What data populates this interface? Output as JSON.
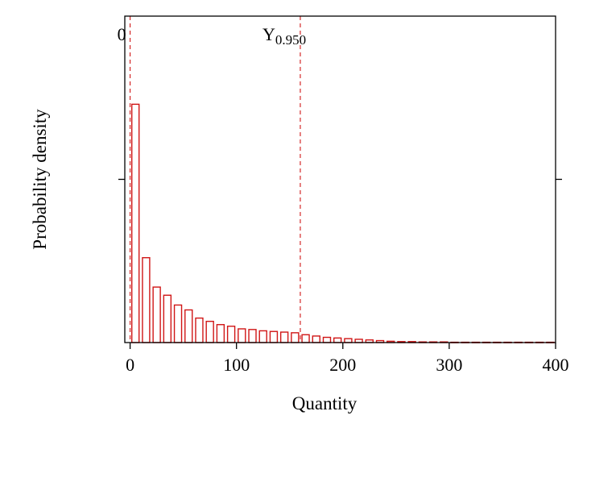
{
  "figure": {
    "background": "#ffffff"
  },
  "chart_data": {
    "type": "bar",
    "title": "",
    "xlabel": "Quantity",
    "ylabel": "Probability density",
    "xlim": [
      -5,
      400
    ],
    "ylim": [
      0,
      1
    ],
    "x_ticks": [
      0,
      100,
      200,
      300,
      400
    ],
    "y_tick_fracs": [
      0.5
    ],
    "grid": false,
    "y_scale": "relative",
    "bin_width": 10,
    "bar_width_frac": 0.68,
    "bar_centers": [
      5,
      15,
      25,
      35,
      45,
      55,
      65,
      75,
      85,
      95,
      105,
      115,
      125,
      135,
      145,
      155,
      165,
      175,
      185,
      195,
      205,
      215,
      225,
      235,
      245,
      255,
      265,
      275,
      285,
      295,
      305,
      315,
      325,
      335,
      345,
      355,
      365,
      375,
      385,
      395
    ],
    "values": [
      0.73,
      0.26,
      0.17,
      0.145,
      0.115,
      0.1,
      0.075,
      0.065,
      0.055,
      0.05,
      0.042,
      0.04,
      0.036,
      0.034,
      0.032,
      0.03,
      0.024,
      0.02,
      0.016,
      0.014,
      0.012,
      0.01,
      0.008,
      0.006,
      0.004,
      0.003,
      0.003,
      0.002,
      0.002,
      0.002,
      0.001,
      0.001,
      0.001,
      0.001,
      0.001,
      0.001,
      0.001,
      0.001,
      0.001,
      0.001
    ],
    "markers": [
      {
        "name": "zero",
        "x": 0,
        "label_main": "0",
        "label_sub": "",
        "label_anchor": "end",
        "label_dx": -5
      },
      {
        "name": "quantile-0950",
        "x": 160,
        "label_main": "Y",
        "label_sub": "0.950",
        "label_anchor": "start",
        "label_dx": -47
      }
    ],
    "colors": {
      "series": "#d01616",
      "marker_line": "#d01616",
      "axis": "#000000",
      "text": "#000000"
    }
  }
}
